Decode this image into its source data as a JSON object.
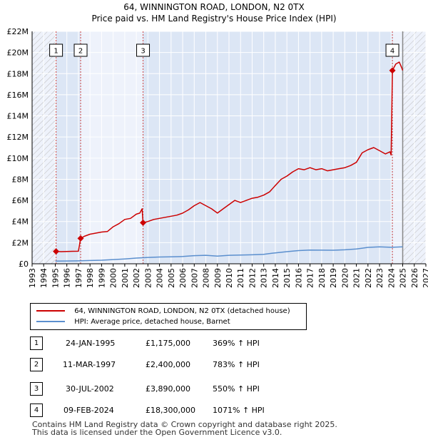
{
  "title_line1": "64, WINNINGTON ROAD, LONDON, N2 0TX",
  "title_line2": "Price paid vs. HM Land Registry's House Price Index (HPI)",
  "colors": {
    "property": "#cc0000",
    "hpi": "#5b8fce",
    "shade": "#dce6f5",
    "hatch": "#bbbbbb",
    "grid": "#ffffff",
    "sale_marker": "#cc0000",
    "vline": "#cc4444"
  },
  "chart_data": {
    "type": "line",
    "title": "Price paid vs. HM Land Registry's House Price Index (HPI)",
    "xlabel": "",
    "ylabel": "",
    "xlim": [
      1993,
      2027
    ],
    "ylim": [
      0,
      22000000
    ],
    "x_ticks": [
      "1993",
      "1994",
      "1995",
      "1996",
      "1997",
      "1998",
      "1999",
      "2000",
      "2001",
      "2002",
      "2003",
      "2004",
      "2005",
      "2006",
      "2007",
      "2008",
      "2009",
      "2010",
      "2011",
      "2012",
      "2013",
      "2014",
      "2015",
      "2016",
      "2017",
      "2018",
      "2019",
      "2020",
      "2021",
      "2022",
      "2023",
      "2024",
      "2025",
      "2026",
      "2027"
    ],
    "y_ticks": [
      {
        "value": 0,
        "label": "£0"
      },
      {
        "value": 2000000,
        "label": "£2M"
      },
      {
        "value": 4000000,
        "label": "£4M"
      },
      {
        "value": 6000000,
        "label": "£6M"
      },
      {
        "value": 8000000,
        "label": "£8M"
      },
      {
        "value": 10000000,
        "label": "£10M"
      },
      {
        "value": 12000000,
        "label": "£12M"
      },
      {
        "value": 14000000,
        "label": "£14M"
      },
      {
        "value": 16000000,
        "label": "£16M"
      },
      {
        "value": 18000000,
        "label": "£18M"
      },
      {
        "value": 20000000,
        "label": "£20M"
      },
      {
        "value": 22000000,
        "label": "£22M"
      }
    ],
    "hatched_ranges": [
      [
        1993,
        1995.07
      ],
      [
        2025.0,
        2027
      ]
    ],
    "shaded_ranges": [
      [
        1995.07,
        1997.19
      ],
      [
        2002.58,
        2024.11
      ]
    ],
    "series": [
      {
        "name": "64, WINNINGTON ROAD, LONDON, N2 0TX (detached house)",
        "points": [
          [
            1995.07,
            1175000
          ],
          [
            1995.5,
            1150000
          ],
          [
            1996.0,
            1170000
          ],
          [
            1996.5,
            1180000
          ],
          [
            1997.0,
            1185000
          ],
          [
            1997.19,
            2400000
          ],
          [
            1997.5,
            2600000
          ],
          [
            1998.0,
            2800000
          ],
          [
            1998.5,
            2900000
          ],
          [
            1999.0,
            3000000
          ],
          [
            1999.5,
            3050000
          ],
          [
            2000.0,
            3500000
          ],
          [
            2000.5,
            3800000
          ],
          [
            2001.0,
            4200000
          ],
          [
            2001.5,
            4300000
          ],
          [
            2002.0,
            4700000
          ],
          [
            2002.3,
            4800000
          ],
          [
            2002.5,
            5200000
          ],
          [
            2002.58,
            3890000
          ],
          [
            2003.0,
            4000000
          ],
          [
            2003.5,
            4200000
          ],
          [
            2004.0,
            4300000
          ],
          [
            2004.5,
            4400000
          ],
          [
            2005.0,
            4500000
          ],
          [
            2005.5,
            4600000
          ],
          [
            2006.0,
            4800000
          ],
          [
            2006.5,
            5100000
          ],
          [
            2007.0,
            5500000
          ],
          [
            2007.5,
            5800000
          ],
          [
            2008.0,
            5500000
          ],
          [
            2008.5,
            5200000
          ],
          [
            2009.0,
            4800000
          ],
          [
            2009.5,
            5200000
          ],
          [
            2010.0,
            5600000
          ],
          [
            2010.5,
            6000000
          ],
          [
            2011.0,
            5800000
          ],
          [
            2011.5,
            6000000
          ],
          [
            2012.0,
            6200000
          ],
          [
            2012.5,
            6300000
          ],
          [
            2013.0,
            6500000
          ],
          [
            2013.5,
            6800000
          ],
          [
            2014.0,
            7400000
          ],
          [
            2014.5,
            8000000
          ],
          [
            2015.0,
            8300000
          ],
          [
            2015.5,
            8700000
          ],
          [
            2016.0,
            9000000
          ],
          [
            2016.5,
            8900000
          ],
          [
            2017.0,
            9100000
          ],
          [
            2017.5,
            8900000
          ],
          [
            2018.0,
            9000000
          ],
          [
            2018.5,
            8800000
          ],
          [
            2019.0,
            8900000
          ],
          [
            2019.5,
            9000000
          ],
          [
            2020.0,
            9100000
          ],
          [
            2020.5,
            9300000
          ],
          [
            2021.0,
            9600000
          ],
          [
            2021.5,
            10500000
          ],
          [
            2022.0,
            10800000
          ],
          [
            2022.5,
            11000000
          ],
          [
            2023.0,
            10700000
          ],
          [
            2023.5,
            10400000
          ],
          [
            2023.9,
            10600000
          ],
          [
            2024.0,
            10300000
          ],
          [
            2024.11,
            18300000
          ],
          [
            2024.4,
            18900000
          ],
          [
            2024.7,
            19100000
          ],
          [
            2024.9,
            18600000
          ],
          [
            2025.0,
            18300000
          ]
        ]
      },
      {
        "name": "HPI: Average price, detached house, Barnet",
        "points": [
          [
            1995.0,
            250000
          ],
          [
            1996.0,
            260000
          ],
          [
            1997.0,
            280000
          ],
          [
            1998.0,
            310000
          ],
          [
            1999.0,
            340000
          ],
          [
            2000.0,
            400000
          ],
          [
            2001.0,
            460000
          ],
          [
            2002.0,
            540000
          ],
          [
            2003.0,
            600000
          ],
          [
            2004.0,
            640000
          ],
          [
            2005.0,
            660000
          ],
          [
            2006.0,
            690000
          ],
          [
            2007.0,
            770000
          ],
          [
            2008.0,
            800000
          ],
          [
            2009.0,
            720000
          ],
          [
            2010.0,
            800000
          ],
          [
            2011.0,
            820000
          ],
          [
            2012.0,
            850000
          ],
          [
            2013.0,
            900000
          ],
          [
            2014.0,
            1030000
          ],
          [
            2015.0,
            1150000
          ],
          [
            2016.0,
            1250000
          ],
          [
            2017.0,
            1300000
          ],
          [
            2018.0,
            1290000
          ],
          [
            2019.0,
            1280000
          ],
          [
            2020.0,
            1320000
          ],
          [
            2021.0,
            1400000
          ],
          [
            2022.0,
            1550000
          ],
          [
            2023.0,
            1600000
          ],
          [
            2024.0,
            1560000
          ],
          [
            2025.0,
            1600000
          ]
        ]
      }
    ],
    "sales": [
      {
        "num": "1",
        "x": 1995.07,
        "y": 1175000
      },
      {
        "num": "2",
        "x": 1997.19,
        "y": 2400000
      },
      {
        "num": "3",
        "x": 2002.58,
        "y": 3890000
      },
      {
        "num": "4",
        "x": 2024.11,
        "y": 18300000
      }
    ]
  },
  "legend": {
    "property": "64, WINNINGTON ROAD, LONDON, N2 0TX (detached house)",
    "hpi": "HPI: Average price, detached house, Barnet"
  },
  "sales_table": [
    {
      "num": "1",
      "date": "24-JAN-1995",
      "price": "£1,175,000",
      "hpi": "369% ↑ HPI"
    },
    {
      "num": "2",
      "date": "11-MAR-1997",
      "price": "£2,400,000",
      "hpi": "783% ↑ HPI"
    },
    {
      "num": "3",
      "date": "30-JUL-2002",
      "price": "£3,890,000",
      "hpi": "550% ↑ HPI"
    },
    {
      "num": "4",
      "date": "09-FEB-2024",
      "price": "£18,300,000",
      "hpi": "1071% ↑ HPI"
    }
  ],
  "footer": {
    "line1": "Contains HM Land Registry data © Crown copyright and database right 2025.",
    "line2": "This data is licensed under the Open Government Licence v3.0."
  }
}
